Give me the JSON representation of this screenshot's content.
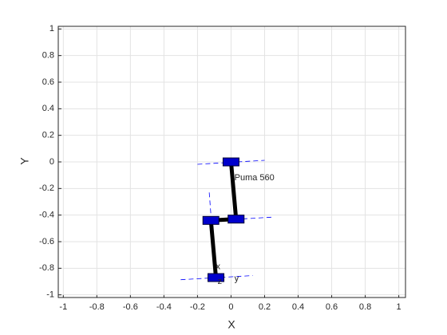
{
  "chart_data": {
    "type": "line",
    "xlabel": "X",
    "ylabel": "Y",
    "xlim": [
      -1.03,
      1.04
    ],
    "ylim": [
      -1.02,
      1.02
    ],
    "xticks": [
      -1,
      -0.8,
      -0.6,
      -0.4,
      -0.2,
      0,
      0.2,
      0.4,
      0.6,
      0.8,
      1
    ],
    "yticks": [
      -1,
      -0.8,
      -0.6,
      -0.4,
      -0.2,
      0,
      0.2,
      0.4,
      0.6,
      0.8,
      1
    ],
    "grid": true,
    "series": [
      {
        "color": "#0000ff",
        "style": "dashed",
        "x": [
          -0.2,
          0.2,
          null,
          0.24,
          -0.17,
          null,
          -0.13,
          -0.105,
          null,
          -0.3,
          0.13
        ],
        "values": [
          -0.018,
          0.012,
          null,
          -0.416,
          -0.446,
          null,
          -0.23,
          -0.65,
          null,
          -0.886,
          -0.855
        ]
      },
      {
        "color": "#000000",
        "style": "solid",
        "marker": "square",
        "marker_color": "#0000cc",
        "x": [
          0,
          0.03,
          -0.12,
          -0.09
        ],
        "values": [
          0,
          -0.43,
          -0.44,
          -0.87
        ]
      }
    ],
    "annotations": [
      {
        "text": "Puma 560",
        "x": 0.02,
        "y": -0.12
      },
      {
        "text": "x",
        "x": -0.09,
        "y": -0.79
      },
      {
        "text": "y",
        "x": 0.02,
        "y": -0.88
      },
      {
        "text": "z",
        "x": -0.08,
        "y": -0.9
      }
    ]
  }
}
